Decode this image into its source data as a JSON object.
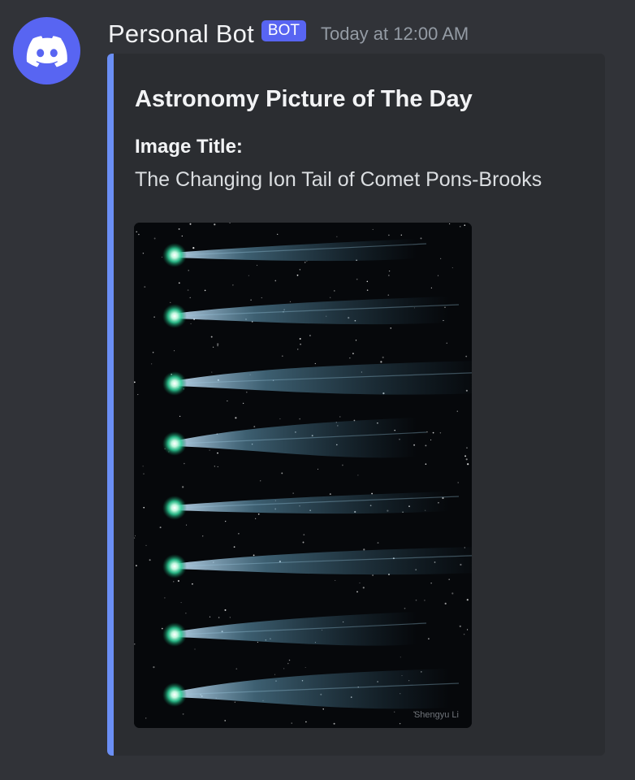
{
  "message": {
    "username": "Personal Bot",
    "bot_tag": "BOT",
    "timestamp": "Today at 12:00 AM",
    "avatar_icon": "discord-logo-icon",
    "accent_color": "#5865f2"
  },
  "embed": {
    "border_color": "#6b8ff5",
    "title": "Astronomy Picture of The Day",
    "field_name": "Image Title:",
    "field_value": "The Changing Ion Tail of Comet Pons-Brooks",
    "image": {
      "alt": "Eight views of comet Pons-Brooks with green comas and blue ion tails",
      "credit": "Shengyu Li"
    }
  }
}
